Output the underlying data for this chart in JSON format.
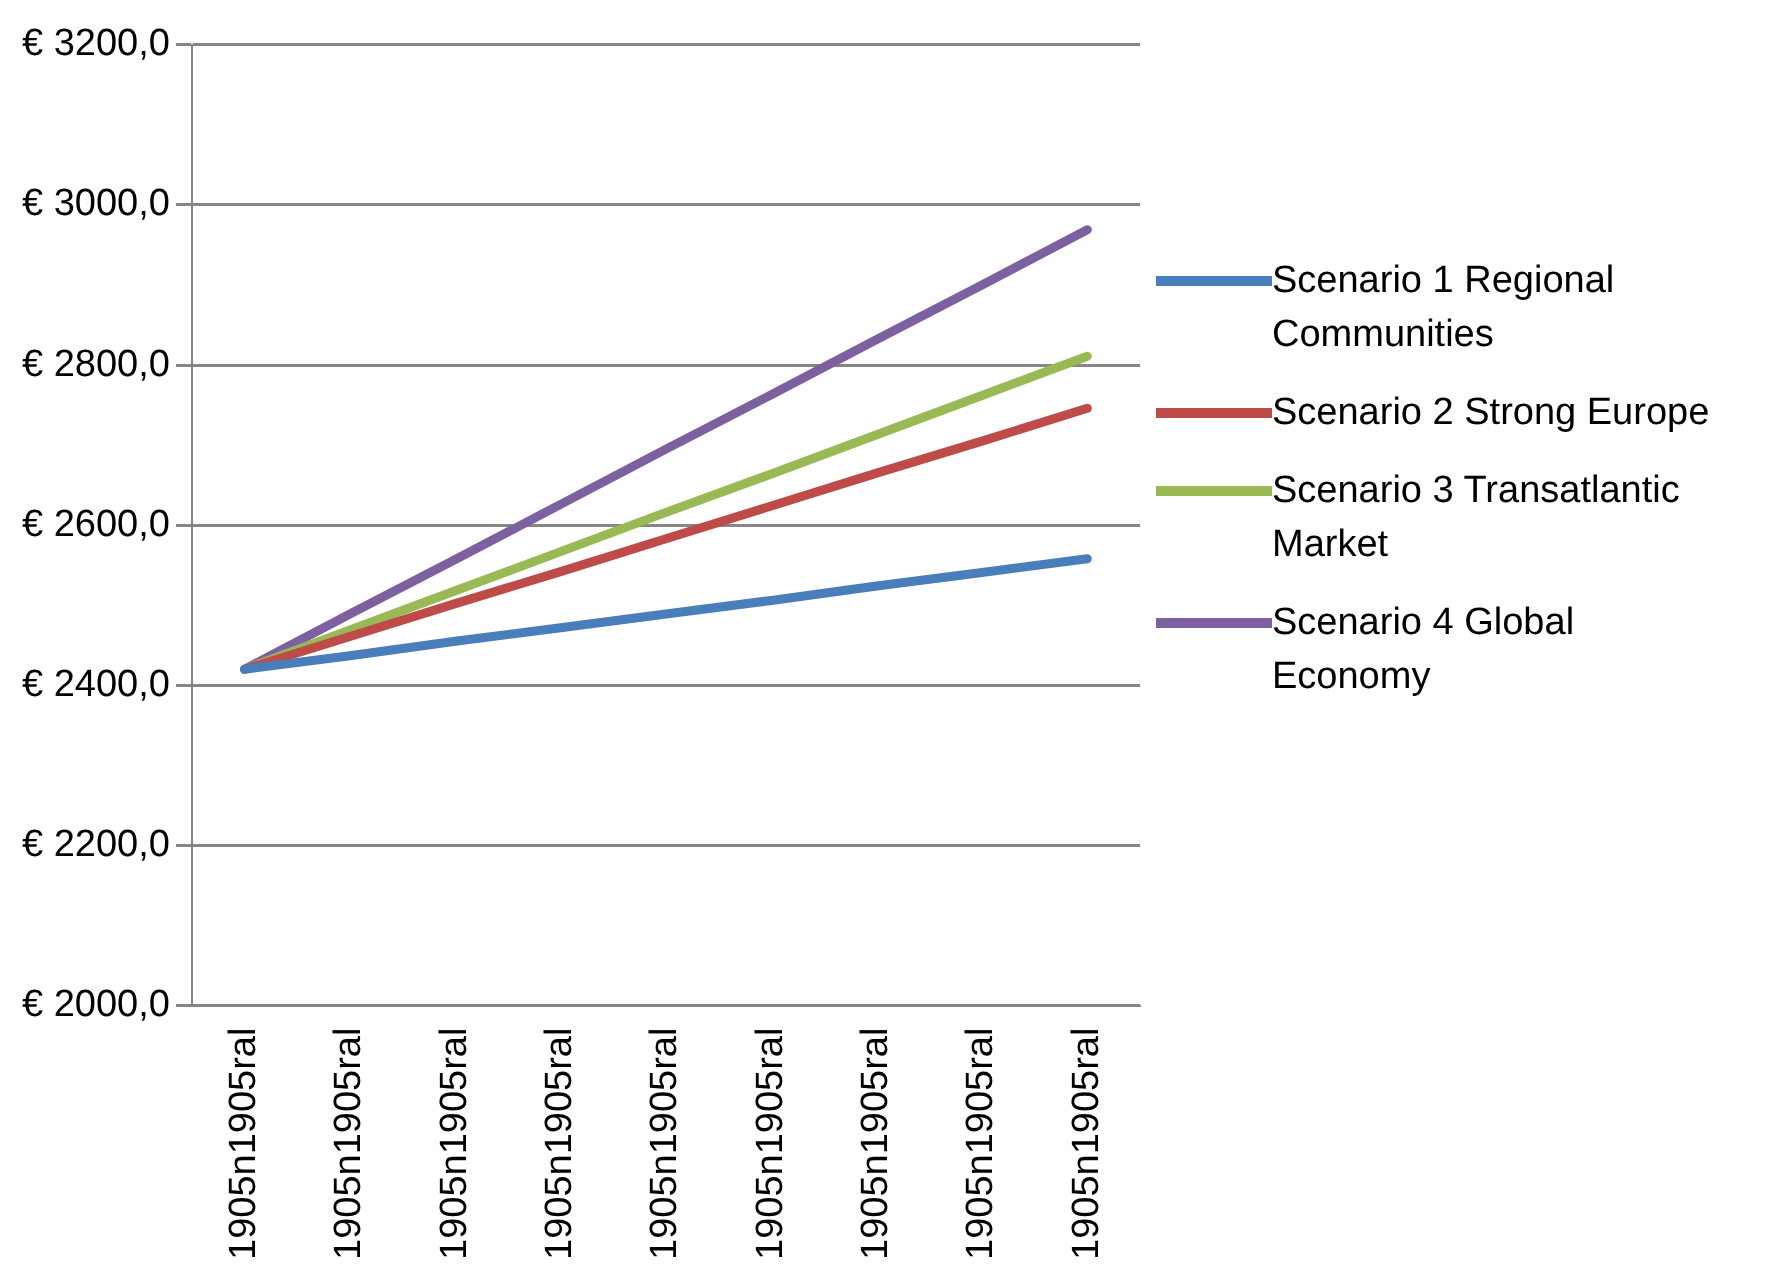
{
  "chart_data": {
    "type": "line",
    "categories": [
      "1905n1905ral",
      "1905n1905ral",
      "1905n1905ral",
      "1905n1905ral",
      "1905n1905ral",
      "1905n1905ral",
      "1905n1905ral",
      "1905n1905ral",
      "1905n1905ral"
    ],
    "series": [
      {
        "name": "Scenario 1 Regional Communities",
        "color": "#4a7ebb",
        "values": [
          2420,
          2437,
          2455,
          2472,
          2489,
          2506,
          2524,
          2541,
          2558
        ]
      },
      {
        "name": "Scenario 2 Strong Europe",
        "color": "#be4b48",
        "values": [
          2420,
          2461,
          2502,
          2542,
          2583,
          2624,
          2665,
          2705,
          2746
        ]
      },
      {
        "name": "Scenario 3 Transatlantic Market",
        "color": "#98b954",
        "values": [
          2420,
          2469,
          2518,
          2567,
          2616,
          2664,
          2713,
          2762,
          2811
        ]
      },
      {
        "name": "Scenario 4 Global Economy",
        "color": "#7d60a0",
        "values": [
          2420,
          2489,
          2557,
          2626,
          2695,
          2763,
          2832,
          2900,
          2969
        ]
      }
    ],
    "ylim": [
      2000,
      3200
    ],
    "yticks": [
      {
        "value": 2000,
        "label": "€ 2000,0"
      },
      {
        "value": 2200,
        "label": "€ 2200,0"
      },
      {
        "value": 2400,
        "label": "€ 2400,0"
      },
      {
        "value": 2600,
        "label": "€ 2600,0"
      },
      {
        "value": 2800,
        "label": "€ 2800,0"
      },
      {
        "value": 3000,
        "label": "€ 3000,0"
      },
      {
        "value": 3200,
        "label": "€ 3200,0"
      }
    ],
    "grid": "y",
    "legend": "right",
    "marker": "none",
    "line_style": "solid"
  }
}
